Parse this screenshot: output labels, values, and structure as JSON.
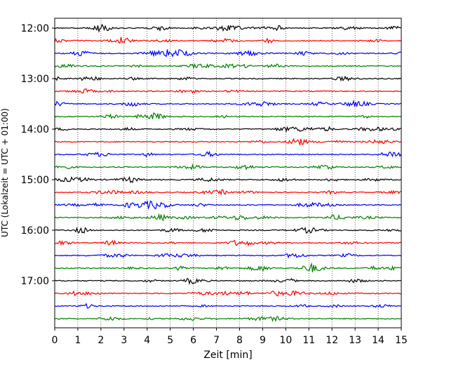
{
  "chart_data": {
    "type": "line",
    "title": "",
    "xlabel": "Zeit  [min]",
    "ylabel": "UTC (Lokalzeit = UTC + 01:00)",
    "xlim": [
      0,
      15
    ],
    "x_ticks": [
      0,
      1,
      2,
      3,
      4,
      5,
      6,
      7,
      8,
      9,
      10,
      11,
      12,
      13,
      14,
      15
    ],
    "y_tick_labels": [
      "12:00",
      "13:00",
      "14:00",
      "15:00",
      "16:00",
      "17:00"
    ],
    "grid": "vertical dotted",
    "traces_per_hour": 4,
    "trace_colors": [
      "#000000",
      "#ff0000",
      "#0000ff",
      "#008000"
    ],
    "trace_start_times": [
      "12:00",
      "12:15",
      "12:30",
      "12:45",
      "13:00",
      "13:15",
      "13:30",
      "13:45",
      "14:00",
      "14:15",
      "14:30",
      "14:45",
      "15:00",
      "15:15",
      "15:30",
      "15:45",
      "16:00",
      "16:15",
      "16:30",
      "16:45",
      "17:00",
      "17:15",
      "17:30",
      "17:45"
    ]
  }
}
